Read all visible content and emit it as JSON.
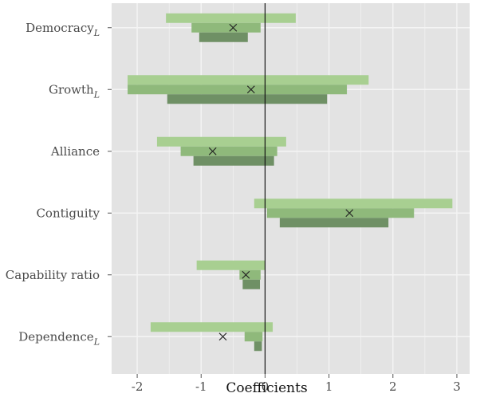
{
  "chart_data": {
    "type": "coefficient-interval",
    "xlabel": "Coefficients",
    "ylabel": "",
    "xlim": [
      -2.4,
      3.2
    ],
    "x_ticks": [
      -2,
      -1,
      0,
      1,
      2,
      3
    ],
    "x_tick_labels": [
      "-2",
      "-1",
      "0",
      "1",
      "2",
      "3"
    ],
    "grid": true,
    "reference_line": 0,
    "colors": {
      "panel": "#e3e3e3",
      "grid": "#f4f4f4",
      "outer": "#a8cf91",
      "middle": "#8fb97b",
      "inner": "#6f9065",
      "marker": "#222222"
    },
    "categories": [
      {
        "label": "Democracy",
        "subscript": "L",
        "point": -0.5,
        "intervals": {
          "outer": [
            -1.55,
            0.48
          ],
          "middle": [
            -1.15,
            -0.07
          ],
          "inner": [
            -1.03,
            -0.27
          ]
        }
      },
      {
        "label": "Growth",
        "subscript": "L",
        "point": -0.22,
        "intervals": {
          "outer": [
            -2.15,
            1.62
          ],
          "middle": [
            -2.15,
            1.28
          ],
          "inner": [
            -1.53,
            0.97
          ]
        }
      },
      {
        "label": "Alliance",
        "subscript": "",
        "point": -0.82,
        "intervals": {
          "outer": [
            -1.69,
            0.33
          ],
          "middle": [
            -1.32,
            0.19
          ],
          "inner": [
            -1.12,
            0.14
          ]
        }
      },
      {
        "label": "Contiguity",
        "subscript": "",
        "point": 1.32,
        "intervals": {
          "outer": [
            -0.17,
            2.93
          ],
          "middle": [
            0.03,
            2.33
          ],
          "inner": [
            0.23,
            1.93
          ]
        }
      },
      {
        "label": "Capability ratio",
        "subscript": "",
        "point": -0.3,
        "intervals": {
          "outer": [
            -1.07,
            0.0
          ],
          "middle": [
            -0.4,
            -0.07
          ],
          "inner": [
            -0.35,
            -0.08
          ]
        }
      },
      {
        "label": "Dependence",
        "subscript": "L",
        "point": -0.66,
        "intervals": {
          "outer": [
            -1.79,
            0.12
          ],
          "middle": [
            -0.32,
            -0.04
          ],
          "inner": [
            -0.17,
            -0.05
          ]
        }
      }
    ]
  }
}
